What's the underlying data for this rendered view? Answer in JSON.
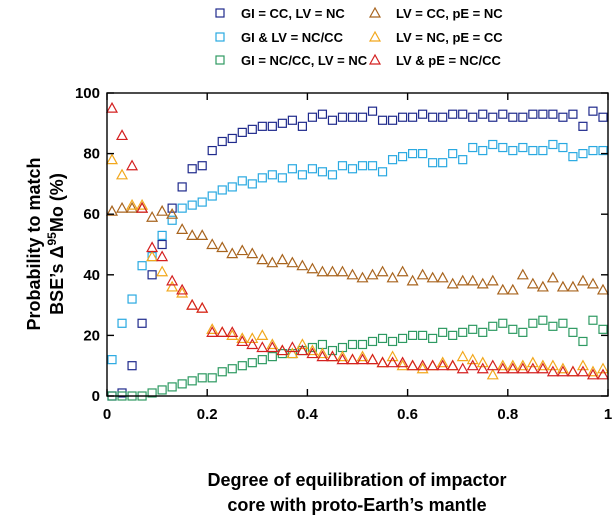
{
  "chart_data": {
    "type": "scatter",
    "xlabel_lines": [
      "Degree of equilibration of impactor",
      "core with proto-Earth’s mantle"
    ],
    "ylabel_lines": [
      "Probability to match",
      "BSE’s Δ",
      "95",
      "Mo (%)"
    ],
    "xlim": [
      0,
      1
    ],
    "ylim": [
      0,
      100
    ],
    "x_ticks": [
      0,
      0.2,
      0.4,
      0.6,
      0.8,
      1
    ],
    "x_tick_labels": [
      "0",
      "0.2",
      "0.4",
      "0.6",
      "0.8",
      "1"
    ],
    "y_ticks": [
      0,
      20,
      40,
      60,
      80,
      100
    ],
    "y_tick_labels": [
      "0",
      "20",
      "40",
      "60",
      "80",
      "100"
    ],
    "grid": false,
    "legend_position": "top",
    "series": [
      {
        "name": "GI = CC, LV = NC",
        "marker": "square",
        "color": "#1f2a8c",
        "x": [
          0.01,
          0.03,
          0.05,
          0.07,
          0.09,
          0.11,
          0.13,
          0.15,
          0.17,
          0.19,
          0.21,
          0.23,
          0.25,
          0.27,
          0.29,
          0.31,
          0.33,
          0.35,
          0.37,
          0.39,
          0.41,
          0.43,
          0.45,
          0.47,
          0.49,
          0.51,
          0.53,
          0.55,
          0.57,
          0.59,
          0.61,
          0.63,
          0.65,
          0.67,
          0.69,
          0.71,
          0.73,
          0.75,
          0.77,
          0.79,
          0.81,
          0.83,
          0.85,
          0.87,
          0.89,
          0.91,
          0.93,
          0.95,
          0.97,
          0.99
        ],
        "y": [
          0,
          1,
          10,
          24,
          40,
          50,
          62,
          69,
          75,
          76,
          81,
          84,
          85,
          87,
          88,
          89,
          89,
          90,
          91,
          89,
          92,
          93,
          91,
          92,
          92,
          92,
          94,
          91,
          91,
          92,
          92,
          93,
          92,
          92,
          93,
          93,
          92,
          93,
          92,
          93,
          92,
          92,
          93,
          93,
          93,
          92,
          93,
          89,
          94,
          92
        ]
      },
      {
        "name": "GI & LV = NC/CC",
        "marker": "square",
        "color": "#29a9e1",
        "x": [
          0.01,
          0.03,
          0.05,
          0.07,
          0.09,
          0.11,
          0.13,
          0.15,
          0.17,
          0.19,
          0.21,
          0.23,
          0.25,
          0.27,
          0.29,
          0.31,
          0.33,
          0.35,
          0.37,
          0.39,
          0.41,
          0.43,
          0.45,
          0.47,
          0.49,
          0.51,
          0.53,
          0.55,
          0.57,
          0.59,
          0.61,
          0.63,
          0.65,
          0.67,
          0.69,
          0.71,
          0.73,
          0.75,
          0.77,
          0.79,
          0.81,
          0.83,
          0.85,
          0.87,
          0.89,
          0.91,
          0.93,
          0.95,
          0.97,
          0.99
        ],
        "y": [
          12,
          24,
          32,
          43,
          46,
          53,
          58,
          62,
          63,
          64,
          66,
          68,
          69,
          71,
          70,
          72,
          73,
          72,
          75,
          73,
          75,
          74,
          73,
          76,
          75,
          76,
          76,
          74,
          78,
          79,
          80,
          80,
          77,
          77,
          80,
          78,
          82,
          81,
          83,
          82,
          81,
          82,
          81,
          81,
          83,
          82,
          79,
          80,
          81,
          81
        ]
      },
      {
        "name": "GI = NC/CC, LV = NC",
        "marker": "square",
        "color": "#2e9a62",
        "x": [
          0.01,
          0.03,
          0.05,
          0.07,
          0.09,
          0.11,
          0.13,
          0.15,
          0.17,
          0.19,
          0.21,
          0.23,
          0.25,
          0.27,
          0.29,
          0.31,
          0.33,
          0.35,
          0.37,
          0.39,
          0.41,
          0.43,
          0.45,
          0.47,
          0.49,
          0.51,
          0.53,
          0.55,
          0.57,
          0.59,
          0.61,
          0.63,
          0.65,
          0.67,
          0.69,
          0.71,
          0.73,
          0.75,
          0.77,
          0.79,
          0.81,
          0.83,
          0.85,
          0.87,
          0.89,
          0.91,
          0.93,
          0.95,
          0.97,
          0.99
        ],
        "y": [
          0,
          0,
          0,
          0,
          1,
          2,
          3,
          4,
          5,
          6,
          6,
          8,
          9,
          10,
          11,
          12,
          13,
          14,
          14,
          15,
          16,
          17,
          15,
          16,
          17,
          17,
          18,
          19,
          18,
          19,
          20,
          20,
          19,
          21,
          20,
          21,
          22,
          21,
          23,
          24,
          22,
          21,
          24,
          25,
          23,
          24,
          21,
          18,
          25,
          22
        ]
      },
      {
        "name": "LV = CC, pE = NC",
        "marker": "triangle",
        "color": "#a8641e",
        "x": [
          0.01,
          0.03,
          0.05,
          0.07,
          0.09,
          0.11,
          0.13,
          0.15,
          0.17,
          0.19,
          0.21,
          0.23,
          0.25,
          0.27,
          0.29,
          0.31,
          0.33,
          0.35,
          0.37,
          0.39,
          0.41,
          0.43,
          0.45,
          0.47,
          0.49,
          0.51,
          0.53,
          0.55,
          0.57,
          0.59,
          0.61,
          0.63,
          0.65,
          0.67,
          0.69,
          0.71,
          0.73,
          0.75,
          0.77,
          0.79,
          0.81,
          0.83,
          0.85,
          0.87,
          0.89,
          0.91,
          0.93,
          0.95,
          0.97,
          0.99
        ],
        "y": [
          61,
          62,
          62,
          62,
          59,
          61,
          60,
          55,
          53,
          53,
          50,
          49,
          47,
          48,
          47,
          45,
          44,
          45,
          44,
          43,
          42,
          41,
          41,
          41,
          40,
          39,
          40,
          41,
          39,
          41,
          38,
          40,
          39,
          39,
          37,
          38,
          38,
          37,
          38,
          35,
          35,
          40,
          37,
          36,
          39,
          36,
          36,
          38,
          37,
          35
        ]
      },
      {
        "name": "LV = NC, pE = CC",
        "marker": "triangle",
        "color": "#f2a81d",
        "x": [
          0.01,
          0.03,
          0.05,
          0.07,
          0.09,
          0.11,
          0.13,
          0.15,
          0.17,
          0.19,
          0.21,
          0.23,
          0.25,
          0.27,
          0.29,
          0.31,
          0.33,
          0.35,
          0.37,
          0.39,
          0.41,
          0.43,
          0.45,
          0.47,
          0.49,
          0.51,
          0.53,
          0.55,
          0.57,
          0.59,
          0.61,
          0.63,
          0.65,
          0.67,
          0.69,
          0.71,
          0.73,
          0.75,
          0.77,
          0.79,
          0.81,
          0.83,
          0.85,
          0.87,
          0.89,
          0.91,
          0.93,
          0.95,
          0.97,
          0.99
        ],
        "y": [
          78,
          73,
          63,
          63,
          46,
          41,
          36,
          34,
          30,
          29,
          22,
          21,
          20,
          19,
          19,
          20,
          17,
          15,
          14,
          17,
          15,
          14,
          13,
          13,
          12,
          13,
          12,
          11,
          13,
          10,
          10,
          9,
          10,
          11,
          10,
          13,
          12,
          11,
          7,
          10,
          10,
          10,
          11,
          10,
          10,
          9,
          8,
          10,
          8,
          9
        ]
      },
      {
        "name": "LV & pE = NC/CC",
        "marker": "triangle",
        "color": "#d42020",
        "x": [
          0.01,
          0.03,
          0.05,
          0.07,
          0.09,
          0.11,
          0.13,
          0.15,
          0.17,
          0.19,
          0.21,
          0.23,
          0.25,
          0.27,
          0.29,
          0.31,
          0.33,
          0.35,
          0.37,
          0.39,
          0.41,
          0.43,
          0.45,
          0.47,
          0.49,
          0.51,
          0.53,
          0.55,
          0.57,
          0.59,
          0.61,
          0.63,
          0.65,
          0.67,
          0.69,
          0.71,
          0.73,
          0.75,
          0.77,
          0.79,
          0.81,
          0.83,
          0.85,
          0.87,
          0.89,
          0.91,
          0.93,
          0.95,
          0.97,
          0.99
        ],
        "y": [
          95,
          86,
          76,
          62,
          49,
          46,
          38,
          35,
          30,
          29,
          21,
          21,
          21,
          18,
          17,
          16,
          16,
          15,
          16,
          15,
          14,
          13,
          13,
          12,
          12,
          12,
          12,
          11,
          11,
          11,
          10,
          10,
          10,
          10,
          10,
          9,
          10,
          9,
          10,
          9,
          9,
          9,
          9,
          9,
          8,
          8,
          8,
          8,
          7,
          7
        ]
      }
    ]
  }
}
